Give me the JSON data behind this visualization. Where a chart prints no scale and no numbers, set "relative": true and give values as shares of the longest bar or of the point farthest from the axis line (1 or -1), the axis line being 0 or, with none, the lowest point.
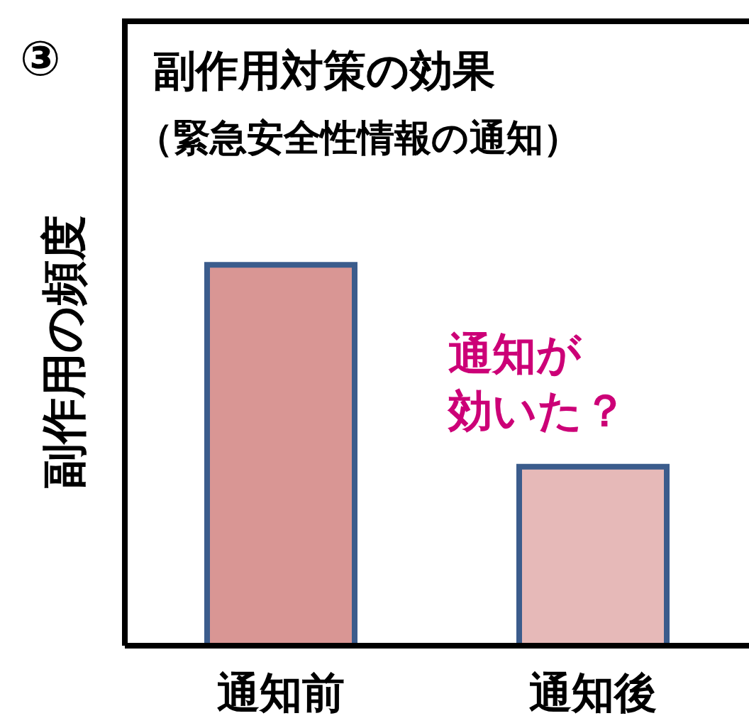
{
  "chart_data": {
    "type": "bar",
    "relative": true,
    "title": "副作用対策の効果",
    "subtitle": "（緊急安全性情報の通知）",
    "ylabel": "副作用の頻度",
    "categories": [
      "通知前",
      "通知後"
    ],
    "values": [
      1,
      0.47
    ],
    "colors": [
      "#d99694",
      "#e6b9b8"
    ],
    "annotations": [
      "③",
      "通知が",
      "効いた？"
    ]
  }
}
